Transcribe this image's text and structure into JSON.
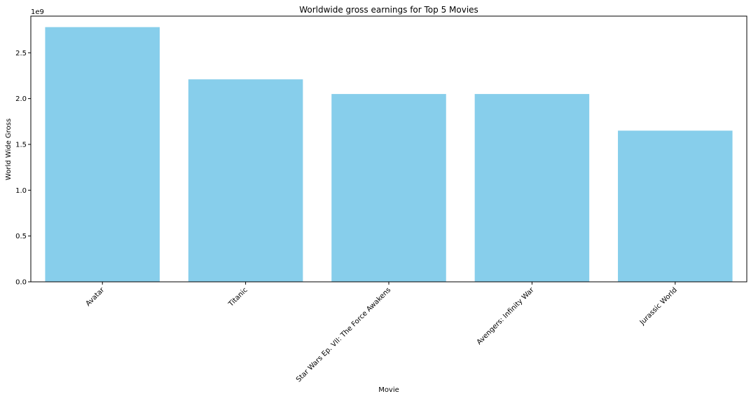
{
  "chart_data": {
    "type": "bar",
    "title": "Worldwide gross earnings for Top 5 Movies",
    "xlabel": "Movie",
    "ylabel": "World Wide Gross",
    "offset_label": "1e9",
    "categories": [
      "Avatar",
      "Titanic",
      "Star Wars Ep. VII: The Force Awakens",
      "Avengers: Infinity War",
      "Jurassic World"
    ],
    "values": [
      2780000000,
      2210000000,
      2050000000,
      2050000000,
      1650000000
    ],
    "ylim": [
      0,
      2900000000
    ],
    "yticks": [
      0,
      500000000,
      1000000000,
      1500000000,
      2000000000,
      2500000000
    ],
    "ytick_labels": [
      "0.0",
      "0.5",
      "1.0",
      "1.5",
      "2.0",
      "2.5"
    ],
    "bar_color": "#87ceeb",
    "grid": false,
    "legend": "none"
  }
}
